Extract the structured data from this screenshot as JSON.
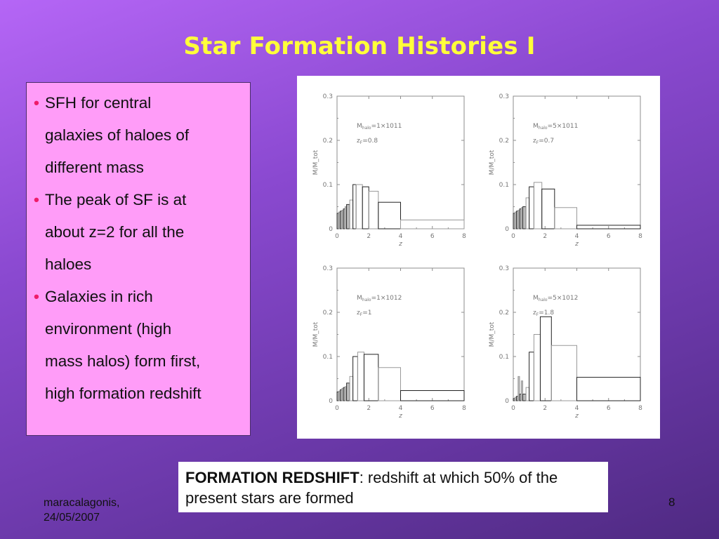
{
  "slide": {
    "title": "Star Formation Histories I",
    "bullets": [
      "SFH for central\ngalaxies of haloes of\ndifferent mass",
      "The peak of SF is at\nabout  z=2 for all the\n haloes",
      "Galaxies in rich\nenvironment (high\nmass halos) form first,\nhigh formation redshift"
    ],
    "note_bold": "FORMATION REDSHIFT",
    "note_text": ": redshift at which 50% of the present stars are formed",
    "footer_author": "maracalagonis,\n24/05/2007",
    "page_number": "8"
  },
  "chart_data": [
    {
      "type": "bar",
      "panel": "top-left",
      "annotation_mass": "M_halo=1×10^11",
      "annotation_zf": "z_F=0.8",
      "xlabel": "z",
      "ylabel": "M/M_tot",
      "xlim": [
        0,
        8
      ],
      "ylim": [
        0,
        0.3
      ],
      "xticks": [
        0,
        2,
        4,
        6,
        8
      ],
      "yticks": [
        0,
        0.1,
        0.2,
        0.3
      ],
      "bins": [
        {
          "x0": 0.0,
          "x1": 0.1,
          "y": 0.035
        },
        {
          "x0": 0.1,
          "x1": 0.2,
          "y": 0.038
        },
        {
          "x0": 0.2,
          "x1": 0.3,
          "y": 0.04
        },
        {
          "x0": 0.3,
          "x1": 0.4,
          "y": 0.042
        },
        {
          "x0": 0.4,
          "x1": 0.5,
          "y": 0.045
        },
        {
          "x0": 0.5,
          "x1": 0.6,
          "y": 0.05
        },
        {
          "x0": 0.6,
          "x1": 0.8,
          "y": 0.055
        },
        {
          "x0": 0.8,
          "x1": 1.0,
          "y": 0.065
        },
        {
          "x0": 1.0,
          "x1": 1.2,
          "y": 0.1
        },
        {
          "x0": 1.2,
          "x1": 1.6,
          "y": 0.1
        },
        {
          "x0": 1.6,
          "x1": 2.0,
          "y": 0.095
        },
        {
          "x0": 2.0,
          "x1": 2.6,
          "y": 0.085
        },
        {
          "x0": 2.6,
          "x1": 4.0,
          "y": 0.06
        },
        {
          "x0": 4.0,
          "x1": 8.0,
          "y": 0.02
        }
      ]
    },
    {
      "type": "bar",
      "panel": "top-right",
      "annotation_mass": "M_halo=5×10^11",
      "annotation_zf": "z_F=0.7",
      "xlabel": "z",
      "ylabel": "M/M_tot",
      "xlim": [
        0,
        8
      ],
      "ylim": [
        0,
        0.3
      ],
      "xticks": [
        0,
        2,
        4,
        6,
        8
      ],
      "yticks": [
        0,
        0.1,
        0.2,
        0.3
      ],
      "bins": [
        {
          "x0": 0.0,
          "x1": 0.1,
          "y": 0.035
        },
        {
          "x0": 0.1,
          "x1": 0.2,
          "y": 0.038
        },
        {
          "x0": 0.2,
          "x1": 0.3,
          "y": 0.04
        },
        {
          "x0": 0.3,
          "x1": 0.4,
          "y": 0.042
        },
        {
          "x0": 0.4,
          "x1": 0.5,
          "y": 0.045
        },
        {
          "x0": 0.5,
          "x1": 0.6,
          "y": 0.048
        },
        {
          "x0": 0.6,
          "x1": 0.8,
          "y": 0.05
        },
        {
          "x0": 0.8,
          "x1": 1.0,
          "y": 0.07
        },
        {
          "x0": 1.0,
          "x1": 1.3,
          "y": 0.095
        },
        {
          "x0": 1.3,
          "x1": 1.8,
          "y": 0.105
        },
        {
          "x0": 1.8,
          "x1": 2.6,
          "y": 0.09
        },
        {
          "x0": 2.6,
          "x1": 4.0,
          "y": 0.048
        },
        {
          "x0": 4.0,
          "x1": 8.0,
          "y": 0.008
        }
      ]
    },
    {
      "type": "bar",
      "panel": "bottom-left",
      "annotation_mass": "M_halo=1×10^12",
      "annotation_zf": "z_F=1",
      "xlabel": "z",
      "ylabel": "M/M_tot",
      "xlim": [
        0,
        8
      ],
      "ylim": [
        0,
        0.3
      ],
      "xticks": [
        0,
        2,
        4,
        6,
        8
      ],
      "yticks": [
        0,
        0.1,
        0.2,
        0.3
      ],
      "bins": [
        {
          "x0": 0.0,
          "x1": 0.1,
          "y": 0.02
        },
        {
          "x0": 0.1,
          "x1": 0.2,
          "y": 0.022
        },
        {
          "x0": 0.2,
          "x1": 0.3,
          "y": 0.025
        },
        {
          "x0": 0.3,
          "x1": 0.4,
          "y": 0.028
        },
        {
          "x0": 0.4,
          "x1": 0.5,
          "y": 0.03
        },
        {
          "x0": 0.5,
          "x1": 0.6,
          "y": 0.032
        },
        {
          "x0": 0.6,
          "x1": 0.8,
          "y": 0.04
        },
        {
          "x0": 0.8,
          "x1": 1.0,
          "y": 0.055
        },
        {
          "x0": 1.0,
          "x1": 1.3,
          "y": 0.1
        },
        {
          "x0": 1.3,
          "x1": 1.7,
          "y": 0.11
        },
        {
          "x0": 1.7,
          "x1": 2.6,
          "y": 0.105
        },
        {
          "x0": 2.6,
          "x1": 4.0,
          "y": 0.075
        },
        {
          "x0": 4.0,
          "x1": 8.0,
          "y": 0.023
        }
      ]
    },
    {
      "type": "bar",
      "panel": "bottom-right",
      "annotation_mass": "M_halo=5×10^12",
      "annotation_zf": "z_F=1.8",
      "xlabel": "z",
      "ylabel": "M/M_tot",
      "xlim": [
        0,
        8
      ],
      "ylim": [
        0,
        0.3
      ],
      "xticks": [
        0,
        2,
        4,
        6,
        8
      ],
      "yticks": [
        0,
        0.1,
        0.2,
        0.3
      ],
      "bins": [
        {
          "x0": 0.0,
          "x1": 0.1,
          "y": 0.005
        },
        {
          "x0": 0.1,
          "x1": 0.2,
          "y": 0.008
        },
        {
          "x0": 0.2,
          "x1": 0.3,
          "y": 0.01
        },
        {
          "x0": 0.3,
          "x1": 0.4,
          "y": 0.055
        },
        {
          "x0": 0.4,
          "x1": 0.5,
          "y": 0.015
        },
        {
          "x0": 0.5,
          "x1": 0.6,
          "y": 0.045
        },
        {
          "x0": 0.6,
          "x1": 0.8,
          "y": 0.015
        },
        {
          "x0": 0.8,
          "x1": 1.0,
          "y": 0.03
        },
        {
          "x0": 1.0,
          "x1": 1.3,
          "y": 0.11
        },
        {
          "x0": 1.3,
          "x1": 1.7,
          "y": 0.15
        },
        {
          "x0": 1.7,
          "x1": 2.4,
          "y": 0.19
        },
        {
          "x0": 2.4,
          "x1": 4.0,
          "y": 0.125
        },
        {
          "x0": 4.0,
          "x1": 8.0,
          "y": 0.053
        }
      ]
    }
  ]
}
